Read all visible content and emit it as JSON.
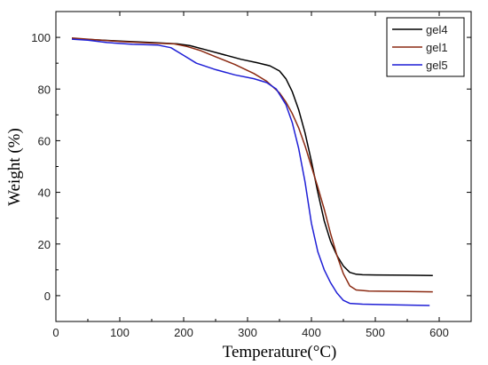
{
  "chart_data": {
    "type": "line",
    "title": "",
    "xlabel": "Temperature(°C)",
    "ylabel": "Weight (%)",
    "xlim": [
      0,
      650
    ],
    "ylim": [
      -10,
      110
    ],
    "xticks": [
      0,
      100,
      200,
      300,
      400,
      500,
      600
    ],
    "yticks": [
      0,
      20,
      40,
      60,
      80,
      100
    ],
    "grid": false,
    "legend_position": "top-right",
    "series": [
      {
        "name": "gel4",
        "color": "#000000",
        "points": [
          [
            25,
            99.5
          ],
          [
            50,
            99.2
          ],
          [
            100,
            98.6
          ],
          [
            150,
            98.0
          ],
          [
            190,
            97.5
          ],
          [
            210,
            96.8
          ],
          [
            230,
            95.5
          ],
          [
            260,
            93.5
          ],
          [
            290,
            91.5
          ],
          [
            315,
            90.2
          ],
          [
            335,
            89.0
          ],
          [
            350,
            87.0
          ],
          [
            360,
            84.0
          ],
          [
            370,
            79.0
          ],
          [
            380,
            72.0
          ],
          [
            390,
            63.0
          ],
          [
            400,
            52.0
          ],
          [
            410,
            40.0
          ],
          [
            420,
            29.0
          ],
          [
            430,
            21.0
          ],
          [
            440,
            15.5
          ],
          [
            450,
            11.5
          ],
          [
            460,
            9.0
          ],
          [
            470,
            8.3
          ],
          [
            480,
            8.1
          ],
          [
            500,
            8.0
          ],
          [
            550,
            7.9
          ],
          [
            590,
            7.8
          ]
        ]
      },
      {
        "name": "gel1",
        "color": "#8b2a12",
        "points": [
          [
            25,
            99.8
          ],
          [
            50,
            99.3
          ],
          [
            100,
            98.4
          ],
          [
            150,
            97.8
          ],
          [
            185,
            97.5
          ],
          [
            205,
            96.5
          ],
          [
            225,
            95.0
          ],
          [
            250,
            92.5
          ],
          [
            280,
            89.5
          ],
          [
            310,
            86.0
          ],
          [
            330,
            83.0
          ],
          [
            350,
            78.5
          ],
          [
            360,
            75.0
          ],
          [
            370,
            70.5
          ],
          [
            380,
            65.0
          ],
          [
            390,
            58.0
          ],
          [
            400,
            50.0
          ],
          [
            410,
            42.0
          ],
          [
            420,
            33.5
          ],
          [
            430,
            24.0
          ],
          [
            440,
            15.5
          ],
          [
            450,
            8.5
          ],
          [
            460,
            3.8
          ],
          [
            470,
            2.2
          ],
          [
            490,
            1.8
          ],
          [
            550,
            1.6
          ],
          [
            590,
            1.5
          ]
        ]
      },
      {
        "name": "gel5",
        "color": "#1f1fd6",
        "points": [
          [
            25,
            99.3
          ],
          [
            50,
            98.9
          ],
          [
            80,
            98.0
          ],
          [
            120,
            97.3
          ],
          [
            160,
            97.0
          ],
          [
            180,
            96.0
          ],
          [
            200,
            93.0
          ],
          [
            220,
            90.0
          ],
          [
            250,
            87.5
          ],
          [
            280,
            85.5
          ],
          [
            310,
            84.0
          ],
          [
            330,
            82.5
          ],
          [
            345,
            80.0
          ],
          [
            360,
            74.0
          ],
          [
            370,
            67.0
          ],
          [
            380,
            57.0
          ],
          [
            390,
            44.0
          ],
          [
            395,
            36.0
          ],
          [
            400,
            28.0
          ],
          [
            410,
            17.0
          ],
          [
            420,
            10.0
          ],
          [
            430,
            5.0
          ],
          [
            440,
            1.0
          ],
          [
            450,
            -1.8
          ],
          [
            460,
            -3.0
          ],
          [
            480,
            -3.3
          ],
          [
            520,
            -3.5
          ],
          [
            585,
            -3.8
          ]
        ]
      }
    ]
  }
}
